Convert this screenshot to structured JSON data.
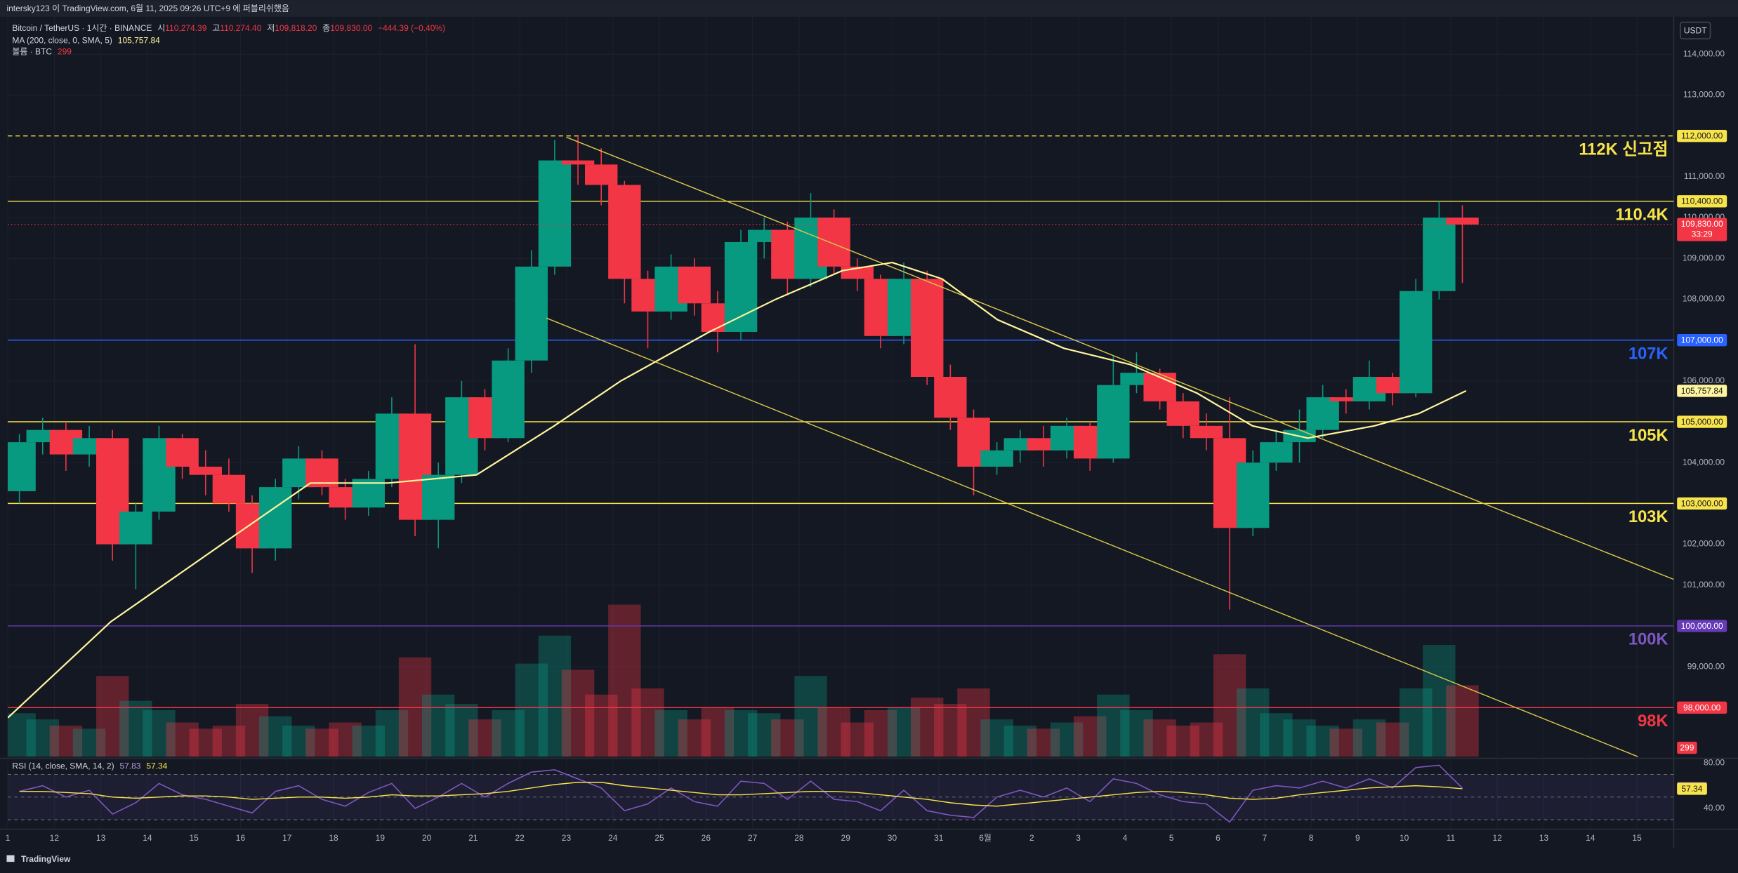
{
  "header": {
    "published": "intersky123 이 TradingView.com, 6월 11, 2025 09:26 UTC+9 에 퍼블리쉬했음",
    "currency": "USDT",
    "brand": "TradingView",
    "legend": {
      "symbol": "Bitcoin / TetherUS · 1시간 · BINANCE",
      "ohlc": [
        {
          "key": "시",
          "value": "110,274.39"
        },
        {
          "key": "고",
          "value": "110,274.40"
        },
        {
          "key": "저",
          "value": "109,818.20"
        },
        {
          "key": "종",
          "value": "109,830.00"
        }
      ],
      "change": "−444.39 (−0.40%)"
    }
  },
  "chart_data": {
    "type": "candlestick",
    "xlim": [
      11,
      46.79
    ],
    "xticks": [
      {
        "value": 11,
        "label": "1"
      },
      12,
      13,
      14,
      15,
      16,
      17,
      18,
      19,
      20,
      21,
      22,
      23,
      24,
      25,
      26,
      27,
      28,
      29,
      30,
      31,
      {
        "value": 32,
        "label": "6월"
      },
      {
        "value": 33,
        "label": "2"
      },
      {
        "value": 34,
        "label": "3"
      },
      {
        "value": 35,
        "label": "4"
      },
      {
        "value": 36,
        "label": "5"
      },
      {
        "value": 37,
        "label": "6"
      },
      {
        "value": 38,
        "label": "7"
      },
      {
        "value": 39,
        "label": "8"
      },
      {
        "value": 40,
        "label": "9"
      },
      {
        "value": 41,
        "label": "10"
      },
      {
        "value": 42,
        "label": "11"
      },
      {
        "value": 43,
        "label": "12"
      },
      {
        "value": 44,
        "label": "13"
      },
      {
        "value": 45,
        "label": "14"
      },
      {
        "value": 46,
        "label": "15"
      }
    ],
    "ylim": [
      96800,
      114920
    ],
    "yticks": [
      {
        "value": 114000,
        "label": "114,000.00"
      },
      {
        "value": 113000,
        "label": "113,000.00"
      },
      {
        "value": 111000,
        "label": "111,000.00"
      },
      {
        "value": 110000,
        "label": "110,000.00"
      },
      {
        "value": 109000,
        "label": "109,000.00"
      },
      {
        "value": 108000,
        "label": "108,000.00"
      },
      {
        "value": 106000,
        "label": "106,000.00"
      },
      {
        "value": 104000,
        "label": "104,000.00"
      },
      {
        "value": 102000,
        "label": "102,000.00"
      },
      {
        "value": 101000,
        "label": "101,000.00"
      },
      {
        "value": 99000,
        "label": "99,000.00"
      }
    ],
    "grid": true,
    "candles": {
      "up_color": "#089981",
      "down_color": "#f23645",
      "x": [
        11.25,
        11.75,
        12.25,
        12.75,
        13.25,
        13.75,
        14.25,
        14.75,
        15.25,
        15.75,
        16.25,
        16.75,
        17.25,
        17.75,
        18.25,
        18.75,
        19.25,
        19.75,
        20.25,
        20.75,
        21.25,
        21.75,
        22.25,
        22.75,
        23.25,
        23.75,
        24.25,
        24.75,
        25.25,
        25.75,
        26.25,
        26.75,
        27.25,
        27.75,
        28.25,
        28.75,
        29.25,
        29.75,
        30.25,
        30.75,
        31.25,
        31.75,
        32.25,
        32.75,
        33.25,
        33.75,
        34.25,
        34.75,
        35.25,
        35.75,
        36.25,
        36.75,
        37.25,
        37.75,
        38.25,
        38.75,
        39.25,
        39.75,
        40.25,
        40.75,
        41.25,
        41.75,
        42.25
      ],
      "open": [
        103300,
        104500,
        104800,
        104200,
        104600,
        102000,
        102800,
        104600,
        103900,
        103700,
        103000,
        101900,
        103400,
        104100,
        103400,
        102900,
        103600,
        105200,
        102600,
        103700,
        105600,
        104600,
        106500,
        108800,
        111400,
        111300,
        110800,
        108500,
        107700,
        108800,
        107900,
        107200,
        109400,
        109700,
        108500,
        110000,
        108800,
        108500,
        107100,
        108500,
        106100,
        105100,
        103900,
        104300,
        104600,
        104300,
        104900,
        104100,
        105900,
        106200,
        105500,
        104900,
        104600,
        102400,
        104000,
        104500,
        104800,
        105600,
        105500,
        106100,
        105700,
        108200,
        110000
      ],
      "high": [
        104700,
        105100,
        105000,
        104900,
        104800,
        103000,
        104900,
        104700,
        104300,
        104100,
        103200,
        103600,
        104400,
        104300,
        103600,
        103800,
        105600,
        106900,
        104000,
        106000,
        105800,
        106800,
        109200,
        111900,
        112000,
        111700,
        110900,
        108700,
        109100,
        109000,
        108200,
        109700,
        110000,
        109900,
        110600,
        110200,
        109000,
        108600,
        108900,
        108700,
        106400,
        105300,
        104500,
        104800,
        104900,
        105100,
        105000,
        106600,
        106700,
        106300,
        105700,
        105200,
        105600,
        104300,
        104800,
        105300,
        105900,
        105800,
        106500,
        106200,
        108500,
        110400,
        110300
      ],
      "low": [
        103000,
        104200,
        103800,
        103900,
        101600,
        100900,
        102600,
        103600,
        103200,
        102800,
        101300,
        101600,
        103100,
        103200,
        102600,
        102700,
        103400,
        102200,
        101900,
        103500,
        104300,
        104500,
        106200,
        108600,
        110800,
        110300,
        107900,
        106800,
        107500,
        107600,
        106700,
        107000,
        109000,
        108100,
        108300,
        108600,
        108200,
        106800,
        106900,
        105900,
        104800,
        103200,
        103700,
        104000,
        103900,
        104100,
        103800,
        104000,
        105700,
        105300,
        104600,
        104300,
        100400,
        102200,
        103800,
        104000,
        104600,
        105200,
        105300,
        105400,
        105600,
        108000,
        108400
      ],
      "close": [
        104500,
        104800,
        104200,
        104600,
        102000,
        102800,
        104600,
        103900,
        103700,
        103000,
        101900,
        103400,
        104100,
        103400,
        102900,
        103600,
        105200,
        102600,
        103700,
        105600,
        104600,
        106500,
        108800,
        111400,
        111300,
        110800,
        108500,
        107700,
        108800,
        107900,
        107200,
        109400,
        109700,
        108500,
        110000,
        108800,
        108500,
        107100,
        108500,
        106100,
        105100,
        103900,
        104300,
        104600,
        104300,
        104900,
        104100,
        105900,
        106200,
        105500,
        104900,
        104600,
        102400,
        104000,
        104500,
        104800,
        105600,
        105500,
        106100,
        105700,
        108200,
        110000,
        109830
      ]
    },
    "volume": {
      "name": "볼륨 · BTC",
      "last": 299,
      "ylim": [
        0,
        6000
      ],
      "values": [
        1400,
        1200,
        1000,
        900,
        2600,
        1800,
        1500,
        1100,
        900,
        1000,
        1700,
        1300,
        1000,
        900,
        1100,
        1000,
        1500,
        3200,
        2000,
        1700,
        1200,
        1500,
        3000,
        3900,
        2800,
        2000,
        4900,
        2200,
        1500,
        1200,
        1600,
        1500,
        1400,
        1200,
        2600,
        1600,
        1100,
        1500,
        1600,
        1900,
        1700,
        2200,
        1200,
        1000,
        900,
        1100,
        1300,
        2000,
        1500,
        1200,
        1000,
        1100,
        3300,
        2200,
        1400,
        1200,
        1000,
        900,
        1200,
        1100,
        2200,
        3600,
        2300
      ]
    },
    "ma": {
      "name": "MA (200, close, 0, SMA, 5)",
      "color": "#fff59d",
      "last_label": "105,757.84",
      "x": [
        11,
        13.21,
        15.6,
        17.5,
        19.17,
        21.07,
        22.74,
        24.17,
        26.07,
        27.5,
        28.93,
        30,
        31.07,
        32.26,
        33.69,
        35.12,
        36.55,
        37.74,
        38.93,
        40.36,
        41.31,
        42.33
      ],
      "values": [
        97750,
        100100,
        102000,
        103500,
        103500,
        103700,
        104900,
        106000,
        107200,
        108000,
        108700,
        108900,
        108500,
        107500,
        106800,
        106400,
        105700,
        104900,
        104600,
        104900,
        105200,
        105757.84
      ]
    },
    "price": {
      "value": 109830,
      "label": "109,830.00",
      "countdown": "33:29",
      "color": "#f23645"
    },
    "levels": [
      {
        "value": 112000,
        "price_label": "112,000.00",
        "text": "112K 신고점",
        "color": "#f7e34a",
        "dashed": true
      },
      {
        "value": 110400,
        "price_label": "110,400.00",
        "text": "110.4K",
        "color": "#f7e34a",
        "dashed": false
      },
      {
        "value": 107000,
        "price_label": "107,000.00",
        "text": "107K",
        "color": "#2962ff",
        "dashed": false
      },
      {
        "value": 105000,
        "price_label": "105,000.00",
        "text": "105K",
        "color": "#f7e34a",
        "dashed": false
      },
      {
        "value": 103000,
        "price_label": "103,000.00",
        "text": "103K",
        "color": "#f7e34a",
        "dashed": false
      },
      {
        "value": 100000,
        "price_label": "100,000.00",
        "text": "100K",
        "color": "#673ab7",
        "dashed": false
      },
      {
        "value": 98000,
        "price_label": "98,000.00",
        "text": "98K",
        "color": "#f23645",
        "dashed": false
      }
    ],
    "trendlines": [
      {
        "color": "#d9c84a",
        "x": [
          23.0,
          46.79
        ],
        "y": [
          111970,
          101140
        ]
      },
      {
        "color": "#d9c84a",
        "x": [
          22.57,
          46.02
        ],
        "y": [
          107540,
          96800
        ]
      }
    ],
    "rsi": {
      "name": "RSI (14, close, SMA, 14, 2)",
      "color": "#7e57c2",
      "sma_color": "#f7e34a",
      "ylim": [
        22.2,
        83.66
      ],
      "yticks": [
        {
          "value": 80,
          "label": "80.00"
        },
        {
          "value": 40,
          "label": "40.00"
        }
      ],
      "levels": [
        70,
        50,
        30
      ],
      "values": [
        55,
        60,
        50,
        56,
        35,
        45,
        62,
        52,
        48,
        42,
        36,
        55,
        60,
        48,
        42,
        54,
        62,
        40,
        50,
        62,
        50,
        62,
        72,
        74,
        66,
        58,
        38,
        44,
        58,
        46,
        42,
        64,
        62,
        48,
        64,
        48,
        46,
        38,
        56,
        38,
        34,
        32,
        50,
        56,
        50,
        58,
        46,
        66,
        62,
        52,
        46,
        44,
        28,
        56,
        60,
        58,
        64,
        58,
        66,
        58,
        76,
        78,
        57.83
      ],
      "sma": [
        55,
        55,
        54,
        53,
        50,
        49,
        50,
        51,
        51,
        50,
        48,
        49,
        50,
        50,
        49,
        50,
        52,
        51,
        51,
        52,
        53,
        55,
        58,
        61,
        63,
        63,
        60,
        58,
        56,
        54,
        52,
        52,
        53,
        54,
        55,
        55,
        54,
        52,
        50,
        48,
        45,
        43,
        42,
        44,
        46,
        48,
        50,
        52,
        54,
        55,
        54,
        52,
        49,
        48,
        49,
        52,
        54,
        56,
        58,
        59,
        60,
        59,
        57.34
      ]
    }
  }
}
